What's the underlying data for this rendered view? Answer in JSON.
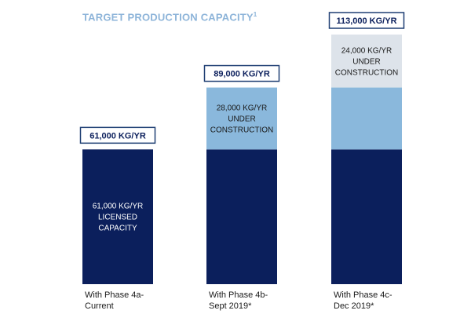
{
  "colors": {
    "title": "#8db4d9",
    "licensed": "#0b1f5c",
    "under_construction_phase_b": "#8ab8dc",
    "under_construction_phase_c_new": "#dde3ea",
    "total_box_border": "#1f3f73",
    "segment_text_dark": "#ffffff",
    "segment_text_light": "#1a1a1a"
  },
  "chart_data": {
    "type": "bar",
    "stacked": true,
    "title": "TARGET PRODUCTION CAPACITY",
    "title_superscript": "1",
    "unit": "KG/YR",
    "categories": [
      [
        "With Phase 4a-",
        "Current"
      ],
      [
        "With Phase 4b-",
        "Sept 2019*"
      ],
      [
        "With Phase 4c-",
        "Dec 2019*"
      ]
    ],
    "totals": [
      61000,
      89000,
      113000
    ],
    "total_labels": [
      "61,000 KG/YR",
      "89,000 KG/YR",
      "113,000 KG/YR"
    ],
    "ylim": [
      0,
      113000
    ],
    "bars": [
      {
        "segments": [
          {
            "value": 61000,
            "color_key": "licensed",
            "label_lines": [
              "61,000 KG/YR",
              "LICENSED",
              "CAPACITY"
            ]
          }
        ]
      },
      {
        "segments": [
          {
            "value": 61000,
            "color_key": "licensed",
            "label_lines": []
          },
          {
            "value": 28000,
            "color_key": "under_construction_phase_b",
            "label_lines": [
              "28,000 KG/YR",
              "UNDER",
              "CONSTRUCTION"
            ]
          }
        ]
      },
      {
        "segments": [
          {
            "value": 61000,
            "color_key": "licensed",
            "label_lines": []
          },
          {
            "value": 28000,
            "color_key": "under_construction_phase_b",
            "label_lines": []
          },
          {
            "value": 24000,
            "color_key": "under_construction_phase_c_new",
            "label_lines": [
              "24,000 KG/YR",
              "UNDER",
              "CONSTRUCTION"
            ]
          }
        ]
      }
    ]
  }
}
